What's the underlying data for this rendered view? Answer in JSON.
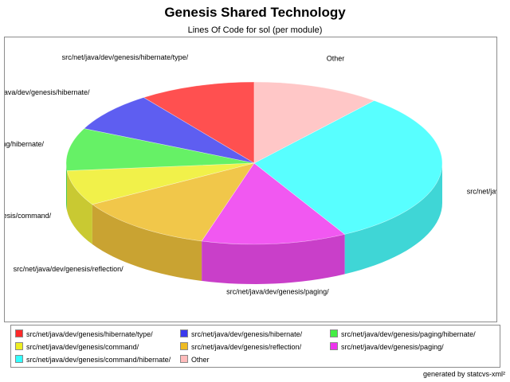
{
  "title": "Genesis Shared Technology",
  "subtitle": "Lines Of Code for sol (per module)",
  "footer": "generated by statcvs-xml²",
  "chart_data": {
    "type": "pie",
    "three_d": true,
    "title": "Genesis Shared Technology",
    "subtitle": "Lines Of Code for sol (per module)",
    "legend_position": "bottom",
    "slices": [
      {
        "label": "src/net/java/dev/genesis/hibernate/type/",
        "value": 10,
        "color": "#ff2a2a"
      },
      {
        "label": "src/net/java/dev/genesis/hibernate/",
        "value": 8,
        "color": "#3a3aee"
      },
      {
        "label": "src/net/java/dev/genesis/paging/hibernate/",
        "value": 8.5,
        "color": "#44ee44"
      },
      {
        "label": "src/net/java/dev/genesis/command/",
        "value": 7,
        "color": "#eeee22"
      },
      {
        "label": "src/net/java/dev/genesis/reflection/",
        "value": 12,
        "color": "#eebb22"
      },
      {
        "label": "src/net/java/dev/genesis/paging/",
        "value": 12.5,
        "color": "#ee33ee"
      },
      {
        "label": "src/net/java/dev/genesis/command/hibernate/",
        "value": 31,
        "color": "#33ffff"
      },
      {
        "label": "Other",
        "value": 11,
        "color": "#ffbbbb"
      }
    ]
  }
}
